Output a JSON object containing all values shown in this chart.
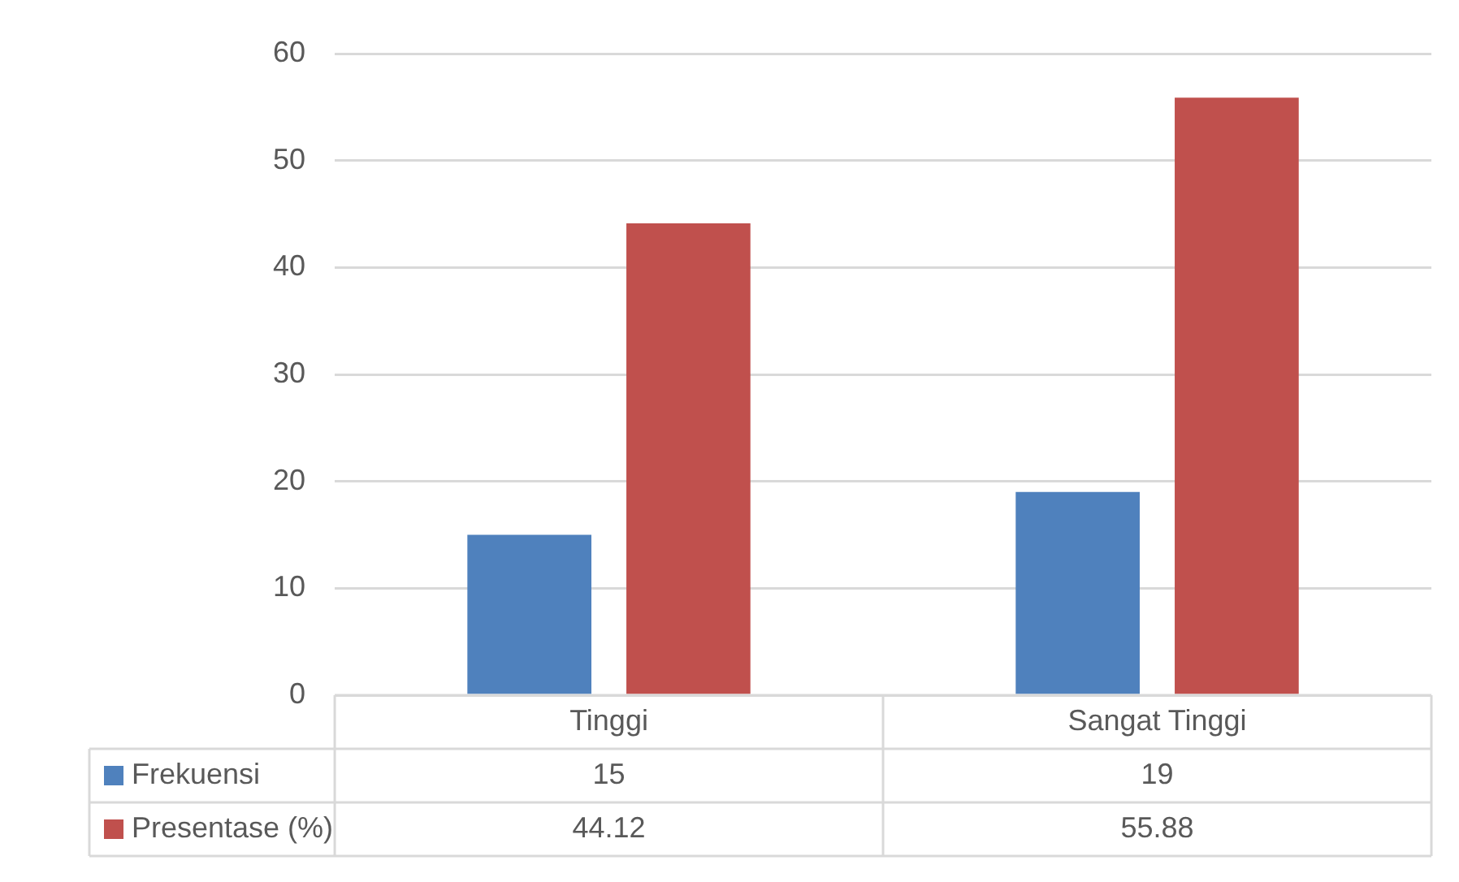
{
  "chart_data": {
    "type": "bar",
    "categories": [
      "Tinggi",
      "Sangat Tinggi"
    ],
    "series": [
      {
        "name": "Frekuensi",
        "color": "#4f81bd",
        "values": [
          15,
          19
        ]
      },
      {
        "name": "Presentase (%)",
        "color": "#c0504d",
        "values": [
          44.12,
          55.88
        ]
      }
    ],
    "ylim": [
      0,
      60
    ],
    "yticks": [
      0,
      10,
      20,
      30,
      40,
      50,
      60
    ],
    "grid": "y",
    "legend": "bottom left",
    "data_labels": true
  }
}
